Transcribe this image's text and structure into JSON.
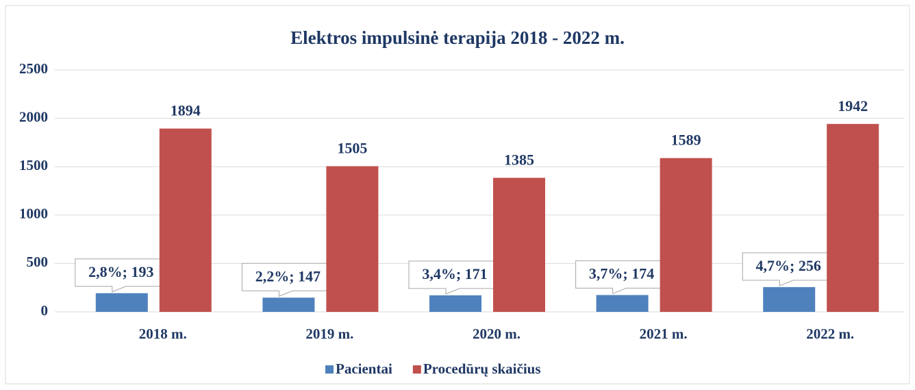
{
  "chart_data": {
    "type": "bar",
    "title": "Elektros impulsinė terapija 2018 - 2022 m.",
    "categories": [
      "2018 m.",
      "2019 m.",
      "2020 m.",
      "2021 m.",
      "2022 m."
    ],
    "series": [
      {
        "name": "Pacientai",
        "color": "#4f81bd",
        "values": [
          193,
          147,
          171,
          174,
          256
        ],
        "value_labels": [
          "2,8%; 193",
          "2,2%; 147",
          "3,4%; 171",
          "3,7%; 174",
          "4,7%; 256"
        ]
      },
      {
        "name": "Procedūrų skaičius",
        "color": "#c0504d",
        "values": [
          1894,
          1505,
          1385,
          1589,
          1942
        ]
      }
    ],
    "ylim": [
      0,
      2500
    ],
    "yticks": [
      0,
      500,
      1000,
      1500,
      2000,
      2500
    ],
    "grid": true,
    "legend": "bottom"
  }
}
